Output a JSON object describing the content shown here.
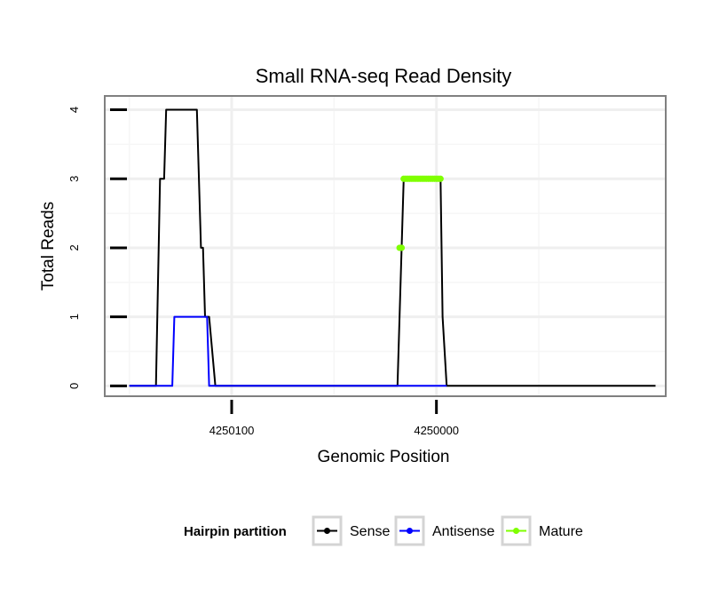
{
  "chart_data": {
    "type": "line",
    "title": "Small RNA-seq Read Density",
    "xlabel": "Genomic Position",
    "ylabel": "Total Reads",
    "xlim": [
      4250162,
      4249888
    ],
    "ylim": [
      -0.15,
      4.2
    ],
    "x_reversed": true,
    "x_ticks": [
      {
        "value": 4250100,
        "label": "4250100"
      },
      {
        "value": 4250000,
        "label": "4250000"
      }
    ],
    "y_ticks": [
      {
        "value": 0,
        "label": "0"
      },
      {
        "value": 1,
        "label": "1"
      },
      {
        "value": 2,
        "label": "2"
      },
      {
        "value": 3,
        "label": "3"
      },
      {
        "value": 4,
        "label": "4"
      }
    ],
    "grid": true,
    "legend": {
      "title": "Hairpin partition",
      "position": "bottom",
      "entries": [
        {
          "name": "Sense",
          "color": "#000000"
        },
        {
          "name": "Antisense",
          "color": "#0000ff"
        },
        {
          "name": "Mature",
          "color": "#7fff00"
        }
      ]
    },
    "series": [
      {
        "name": "Sense",
        "color": "#000000",
        "style": "line",
        "x": [
          4250150,
          4250137,
          4250135,
          4250133,
          4250132,
          4250130,
          4250117,
          4250115,
          4250114,
          4250113,
          4250111,
          4250108,
          4250108,
          4250019,
          4250016,
          4249998,
          4249997,
          4249995,
          4249893
        ],
        "y": [
          0,
          0,
          3,
          3,
          4,
          4,
          4,
          2,
          2,
          1,
          1,
          0,
          0,
          0,
          3,
          3,
          1,
          0,
          0
        ]
      },
      {
        "name": "Antisense",
        "color": "#0000ff",
        "style": "line",
        "x": [
          4250150,
          4250129,
          4250128,
          4250112,
          4250111,
          4250019,
          4249995
        ],
        "y": [
          0,
          0,
          1,
          1,
          0,
          0,
          0
        ]
      },
      {
        "name": "Mature",
        "color": "#7fff00",
        "style": "points",
        "x": [
          4250018,
          4250017,
          4250016,
          4250015,
          4250014,
          4250013,
          4250012,
          4250011,
          4250010,
          4250009,
          4250008,
          4250007,
          4250006,
          4250005,
          4250004,
          4250003,
          4250002,
          4250001,
          4250000,
          4249999,
          4249998
        ],
        "y": [
          2,
          2,
          3,
          3,
          3,
          3,
          3,
          3,
          3,
          3,
          3,
          3,
          3,
          3,
          3,
          3,
          3,
          3,
          3,
          3,
          3
        ]
      }
    ]
  }
}
